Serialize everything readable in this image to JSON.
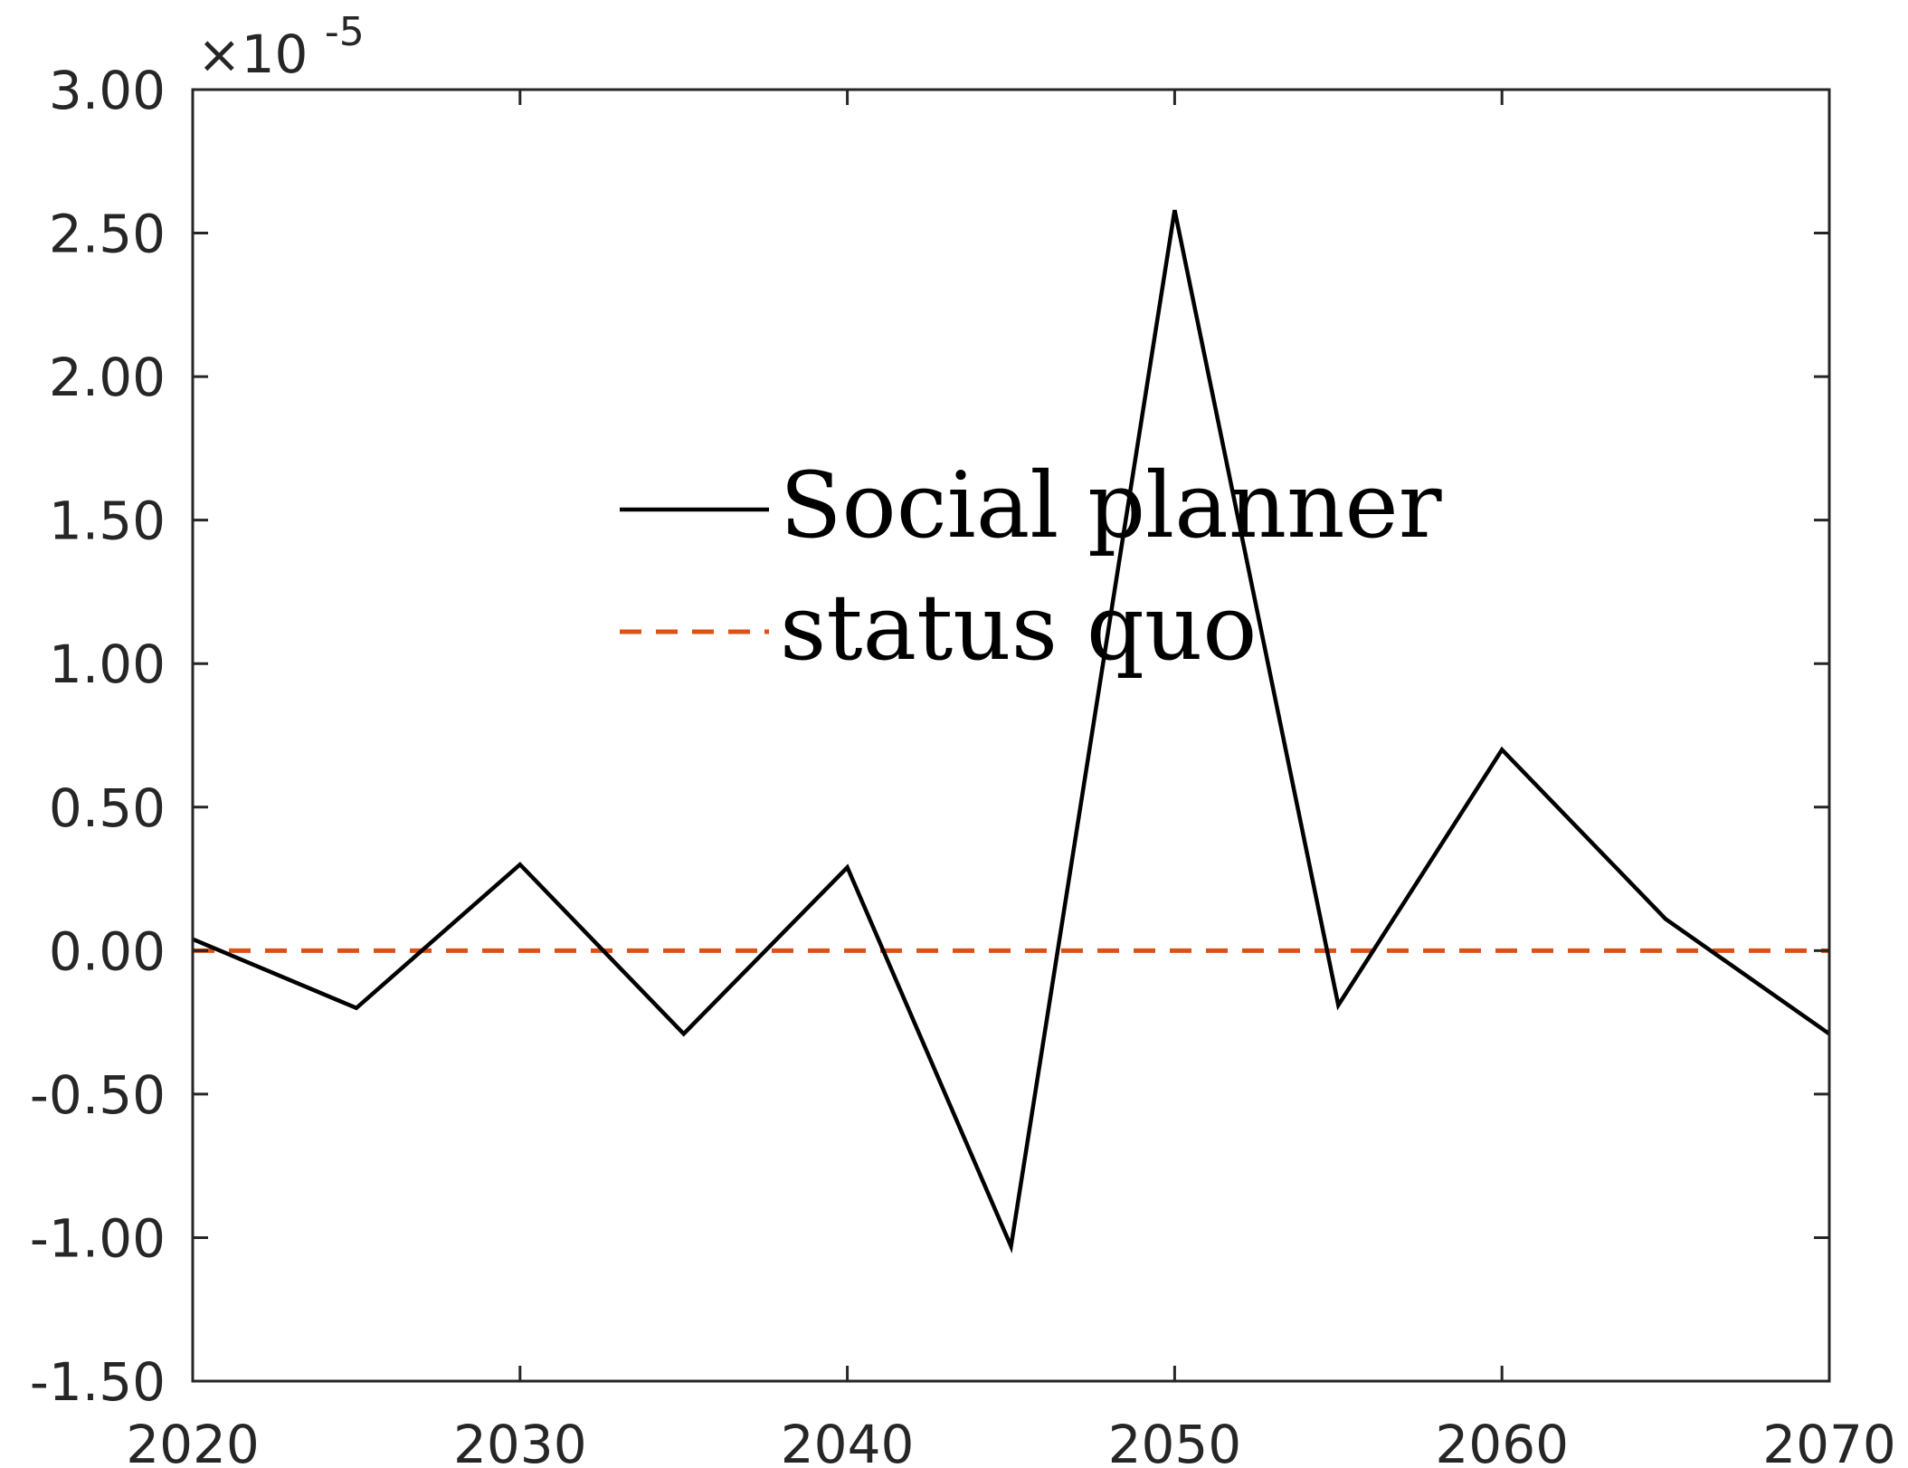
{
  "chart_data": {
    "type": "line",
    "x": [
      2020,
      2025,
      2030,
      2035,
      2040,
      2045,
      2050,
      2055,
      2060,
      2065,
      2070
    ],
    "series": [
      {
        "name": "Social planner",
        "values": [
          0.04,
          -0.2,
          0.3,
          -0.29,
          0.29,
          -1.03,
          2.58,
          -0.19,
          0.7,
          0.11,
          -0.29
        ],
        "color": "#000000",
        "style": "solid"
      },
      {
        "name": "status quo",
        "values": [
          0,
          0,
          0,
          0,
          0,
          0,
          0,
          0,
          0,
          0,
          0
        ],
        "color": "#D95319",
        "style": "dashed"
      }
    ],
    "xlim": [
      2020,
      2070
    ],
    "ylim": [
      -1.5,
      3.0
    ],
    "xticks": [
      2020,
      2030,
      2040,
      2050,
      2060,
      2070
    ],
    "yticks": [
      -1.5,
      -1.0,
      -0.5,
      0.0,
      0.5,
      1.0,
      1.5,
      2.0,
      2.5,
      3.0
    ],
    "ytick_labels": [
      "-1.50",
      "-1.00",
      "-0.50",
      "0.00",
      "0.50",
      "1.00",
      "1.50",
      "2.00",
      "2.50",
      "3.00"
    ],
    "y_multiplier_base": "×10",
    "y_multiplier_exponent": "-5",
    "title": "",
    "xlabel": "",
    "ylabel": "",
    "grid": false,
    "legend_position": "center-top"
  }
}
